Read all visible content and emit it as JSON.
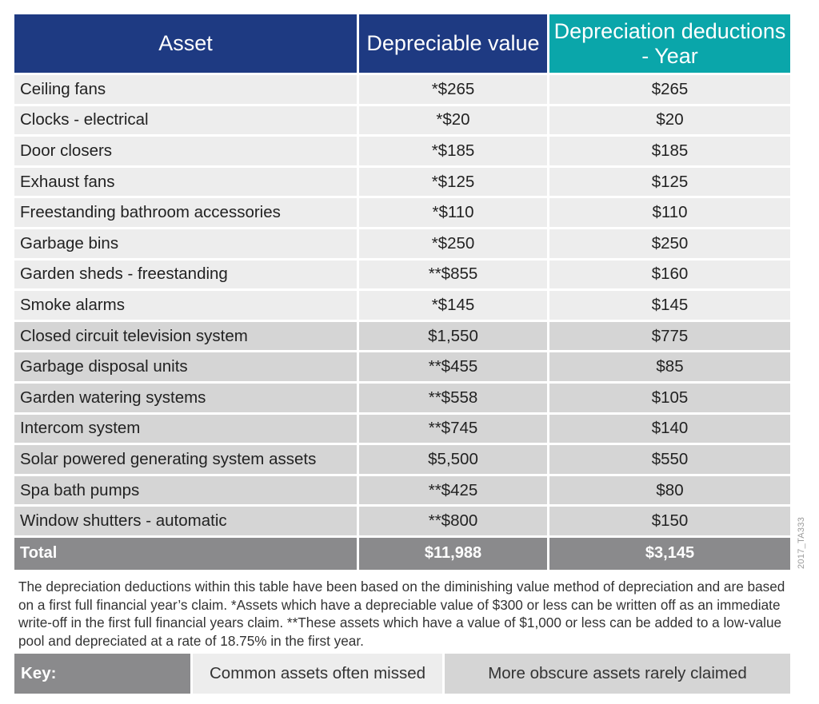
{
  "table": {
    "headers": {
      "asset": "Asset",
      "value": "Depreciable value",
      "deduction": "Depreciation deductions - Year"
    },
    "common_rows": [
      {
        "asset": "Ceiling fans",
        "value": "*$265",
        "deduction": "$265"
      },
      {
        "asset": "Clocks - electrical",
        "value": "*$20",
        "deduction": "$20"
      },
      {
        "asset": "Door closers",
        "value": "*$185",
        "deduction": "$185"
      },
      {
        "asset": "Exhaust fans",
        "value": "*$125",
        "deduction": "$125"
      },
      {
        "asset": "Freestanding bathroom accessories",
        "value": "*$110",
        "deduction": "$110"
      },
      {
        "asset": "Garbage bins",
        "value": "*$250",
        "deduction": "$250"
      },
      {
        "asset": "Garden sheds - freestanding",
        "value": "**$855",
        "deduction": "$160"
      },
      {
        "asset": "Smoke alarms",
        "value": "*$145",
        "deduction": "$145"
      }
    ],
    "obscure_rows": [
      {
        "asset": "Closed circuit television system",
        "value": "$1,550",
        "deduction": "$775"
      },
      {
        "asset": "Garbage disposal units",
        "value": "**$455",
        "deduction": "$85"
      },
      {
        "asset": "Garden watering systems",
        "value": "**$558",
        "deduction": "$105"
      },
      {
        "asset": "Intercom system",
        "value": "**$745",
        "deduction": "$140"
      },
      {
        "asset": "Solar powered generating system assets",
        "value": "$5,500",
        "deduction": "$550"
      },
      {
        "asset": "Spa bath pumps",
        "value": "**$425",
        "deduction": "$80"
      },
      {
        "asset": "Window shutters - automatic",
        "value": "**$800",
        "deduction": "$150"
      }
    ],
    "total": {
      "label": "Total",
      "value": "$11,988",
      "deduction": "$3,145"
    }
  },
  "footnote": "The depreciation deductions within this table have been based on the diminishing value method of depreciation and are based on a first full financial year’s claim. *Assets which have a depreciable value of $300 or less can be written off as an immediate write-off in the first full financial years claim. **These assets which have a value of $1,000 or less can be added to a low-value pool and depreciated at a rate of 18.75% in the first year.",
  "key": {
    "label": "Key:",
    "common": "Common assets often missed",
    "obscure": "More obscure assets rarely claimed"
  },
  "code": "2017_TA333",
  "colors": {
    "header_navy": "#1e3a82",
    "header_teal": "#0aa6aa",
    "common_row": "#ededed",
    "obscure_row": "#d5d5d5",
    "total_row": "#8a8a8c"
  }
}
